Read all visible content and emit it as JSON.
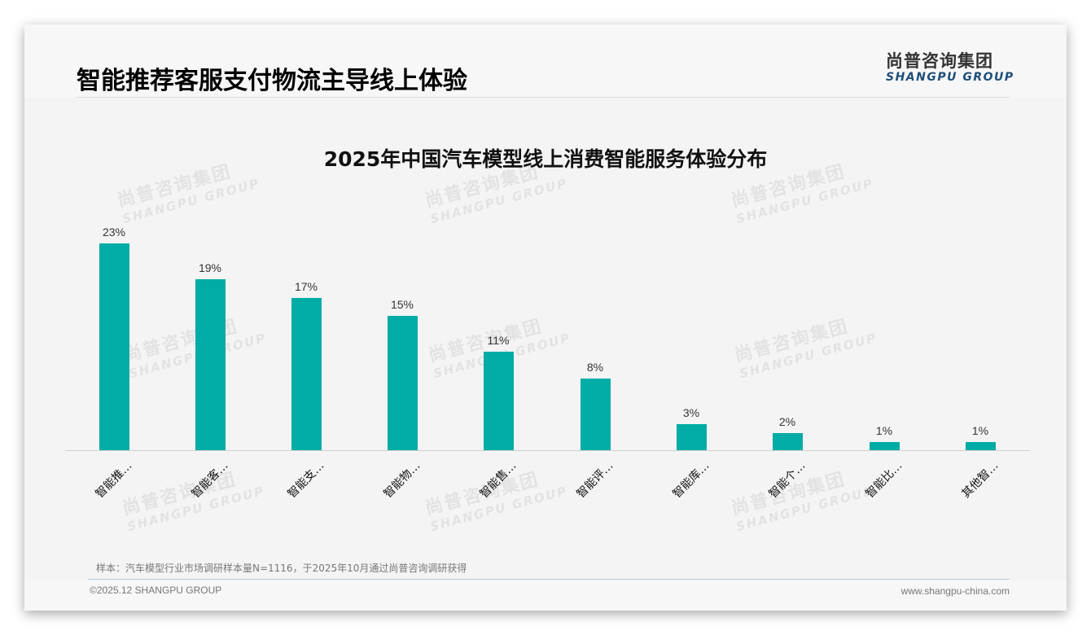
{
  "header": {
    "page_title": "智能推荐客服支付物流主导线上体验",
    "logo_cn": "尚普咨询集团",
    "logo_en": "SHANGPU GROUP"
  },
  "watermark": {
    "cn": "尚普咨询集团",
    "en": "SHANGPU GROUP"
  },
  "colors": {
    "bar": "#00aca5",
    "logo_en": "#1f4e79"
  },
  "chart_data": {
    "type": "bar",
    "title": "2025年中国汽车模型线上消费智能服务体验分布",
    "categories": [
      "智能推…",
      "智能客…",
      "智能支…",
      "智能物…",
      "智能售…",
      "智能评…",
      "智能库…",
      "智能个…",
      "智能比…",
      "其他智…"
    ],
    "values": [
      23,
      19,
      17,
      15,
      11,
      8,
      3,
      2,
      1,
      1
    ],
    "value_labels": [
      "23%",
      "19%",
      "17%",
      "15%",
      "11%",
      "8%",
      "3%",
      "2%",
      "1%",
      "1%"
    ],
    "unit": "%",
    "xlabel": "",
    "ylabel": "",
    "ylim": [
      0,
      25
    ],
    "grid": false,
    "legend": null
  },
  "footer": {
    "note": "样本：汽车模型行业市场调研样本量N=1116，于2025年10月通过尚普咨询调研获得",
    "copyright": "©2025.12 SHANGPU GROUP",
    "website": "www.shangpu-china.com"
  }
}
